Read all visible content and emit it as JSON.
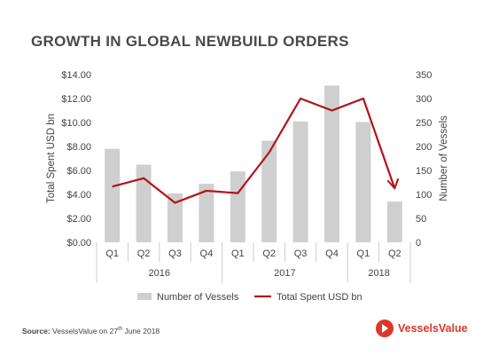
{
  "title": "GROWTH IN GLOBAL NEWBUILD ORDERS",
  "source": {
    "label": "Source:",
    "text_before": "VesselsValue on 27",
    "superscript": "th",
    "text_after": " June 2018"
  },
  "logo": {
    "text": "VesselsValue"
  },
  "chart_data": {
    "type": "bar",
    "categories": [
      "Q1",
      "Q2",
      "Q3",
      "Q4",
      "Q1",
      "Q2",
      "Q3",
      "Q4",
      "Q1",
      "Q2"
    ],
    "years": [
      {
        "label": "2016",
        "span": [
          0,
          3
        ]
      },
      {
        "label": "2017",
        "span": [
          4,
          7
        ]
      },
      {
        "label": "2018",
        "span": [
          8,
          9
        ]
      }
    ],
    "series": [
      {
        "name": "Number of Vessels",
        "type": "bar",
        "axis": "right",
        "color": "#cfcfcf",
        "values": [
          195,
          162,
          102,
          122,
          148,
          212,
          252,
          327,
          251,
          85
        ]
      },
      {
        "name": "Total Spent USD bn",
        "type": "line",
        "axis": "left",
        "color": "#b2121b",
        "values": [
          4.65,
          5.35,
          3.3,
          4.3,
          4.1,
          7.5,
          12.0,
          11.0,
          12.0,
          4.5
        ]
      }
    ],
    "ylabel_left": "Total Spent USD bn",
    "ylabel_right": "Number of Vessels",
    "ylim_left": [
      0,
      14
    ],
    "ylim_right": [
      0,
      350
    ],
    "yticks_left": [
      "$0.00",
      "$2.00",
      "$4.00",
      "$6.00",
      "$8.00",
      "$10.00",
      "$12.00",
      "$14.00"
    ],
    "yticks_right": [
      "0",
      "50",
      "100",
      "150",
      "200",
      "250",
      "300",
      "350"
    ],
    "grid": false,
    "legend_position": "bottom"
  }
}
